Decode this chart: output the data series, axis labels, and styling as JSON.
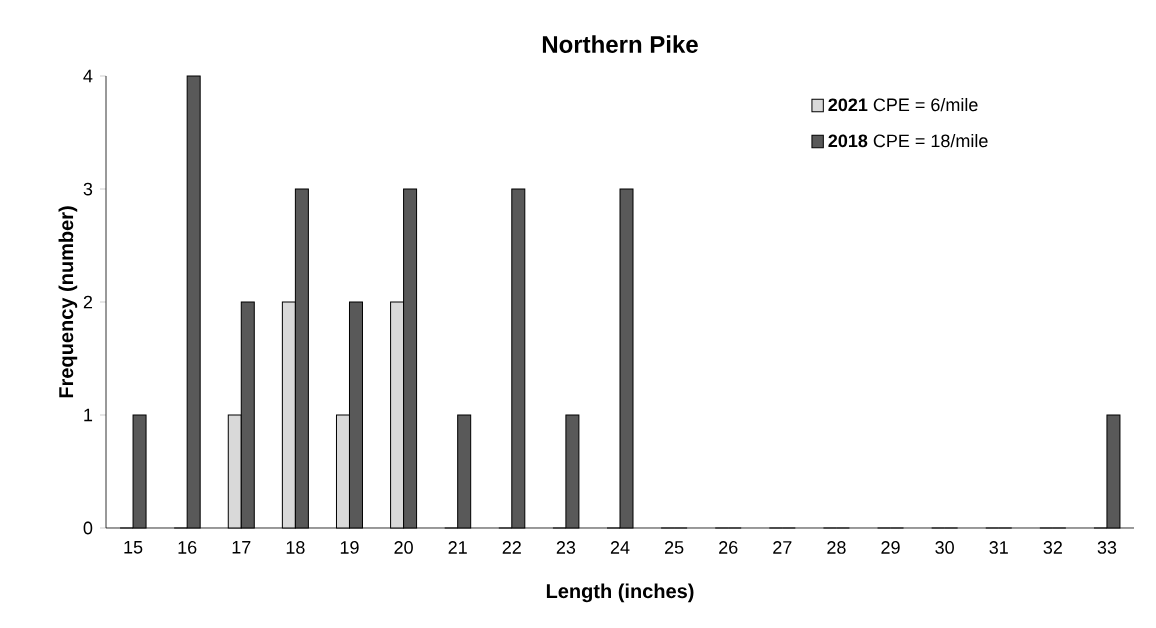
{
  "chart_data": {
    "type": "bar",
    "title": "Northern Pike",
    "xlabel": "Length (inches)",
    "ylabel": "Frequency (number)",
    "categories": [
      "15",
      "16",
      "17",
      "18",
      "19",
      "20",
      "21",
      "22",
      "23",
      "24",
      "25",
      "26",
      "27",
      "28",
      "29",
      "30",
      "31",
      "32",
      "33"
    ],
    "series": [
      {
        "name": "**2021** CPE = 6/mile",
        "color": "#d9d9d9",
        "values": [
          0,
          0,
          1,
          2,
          1,
          2,
          0,
          0,
          0,
          0,
          0,
          0,
          0,
          0,
          0,
          0,
          0,
          0,
          0
        ]
      },
      {
        "name": "**2018** CPE = 18/mile",
        "color": "#595959",
        "values": [
          1,
          4,
          2,
          3,
          2,
          3,
          1,
          3,
          1,
          3,
          0,
          0,
          0,
          0,
          0,
          0,
          0,
          0,
          1
        ]
      }
    ],
    "ylim": [
      0,
      4
    ],
    "yticks": [
      0,
      1,
      2,
      3,
      4
    ],
    "grid": false,
    "legend": "top right"
  }
}
